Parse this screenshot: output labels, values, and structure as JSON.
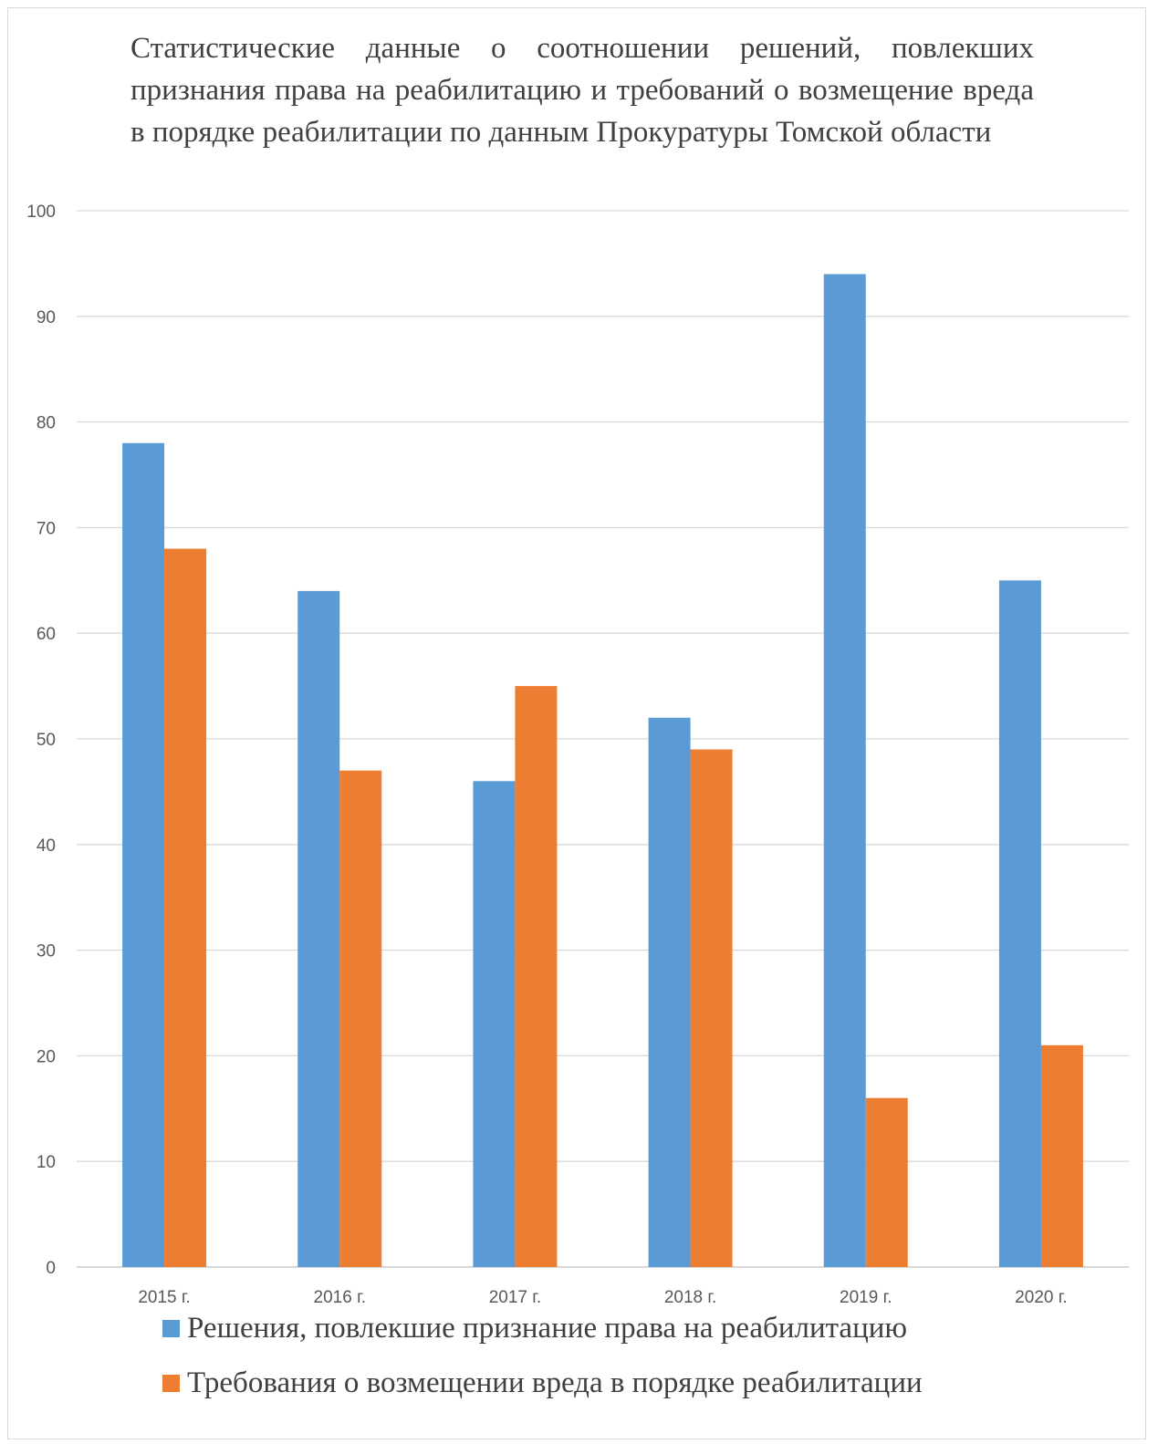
{
  "chart_data": {
    "type": "bar",
    "title": "Статистические данные о соотношении решений, повлекших признания права на реабилитацию и требований о возмещение вреда в порядке реабилитации по данным Прокуратуры Томской области",
    "categories": [
      "2015 г.",
      "2016 г.",
      "2017 г.",
      "2018 г.",
      "2019 г.",
      "2020 г."
    ],
    "series": [
      {
        "name": "Решения, повлекшие признание права на реабилитацию",
        "values": [
          78,
          64,
          46,
          52,
          94,
          65
        ],
        "color": "#5b9bd5"
      },
      {
        "name": "Требования о возмещении вреда в порядке реабилитации",
        "values": [
          68,
          47,
          55,
          49,
          16,
          21
        ],
        "color": "#ed7d31"
      }
    ],
    "xlabel": "",
    "ylabel": "",
    "ylim": [
      0,
      100
    ],
    "yticks": [
      0,
      10,
      20,
      30,
      40,
      50,
      60,
      70,
      80,
      90,
      100
    ],
    "grid": true,
    "legend_position": "bottom"
  }
}
